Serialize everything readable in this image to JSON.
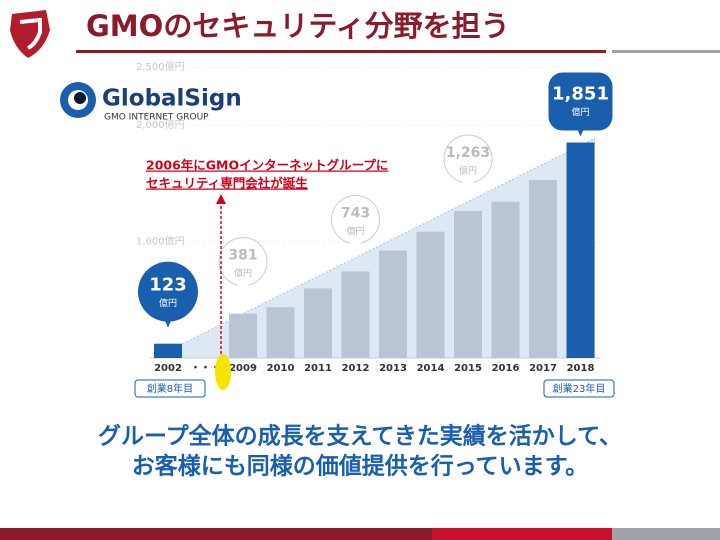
{
  "slide": {
    "title": "GMOのセキュリティ分野を担う",
    "message": [
      "グループ全体の成長を支えてきた実績を活かして、",
      "お客様にも同様の価値提供を行っています。"
    ],
    "logo": {
      "name": "GlobalSign",
      "group": "GMO INTERNET GROUP"
    }
  },
  "chart_data": {
    "type": "bar",
    "categories": [
      "2002",
      "・・・",
      "2009",
      "2010",
      "2011",
      "2012",
      "2013",
      "2014",
      "2015",
      "2016",
      "2017",
      "2018"
    ],
    "values": [
      123,
      null,
      381,
      436,
      598,
      743,
      923,
      1085,
      1263,
      1342,
      1530,
      1851
    ],
    "value_labels": [
      "123",
      null,
      "381",
      null,
      null,
      "743",
      null,
      null,
      "1,263",
      null,
      null,
      "1,851"
    ],
    "value_label_unit": "億円",
    "colors": [
      "#1a5fad",
      null,
      "#b9c4d4",
      "#b9c4d4",
      "#b9c4d4",
      "#b9c4d4",
      "#b9c4d4",
      "#b9c4d4",
      "#b9c4d4",
      "#b9c4d4",
      "#b9c4d4",
      "#1a5fad"
    ],
    "ylim": [
      0,
      2500
    ],
    "yticks": [
      {
        "value": 1000,
        "label": "1,000億円"
      },
      {
        "value": 2000,
        "label": "2,000億円"
      },
      {
        "value": 2500,
        "label": "2,500億円"
      }
    ],
    "annotations": [
      "2006年にGMOインターネットグループに",
      "セキュリティ専門会社が誕生"
    ],
    "start_label": "創業8年目",
    "end_label": "創業23年目"
  }
}
